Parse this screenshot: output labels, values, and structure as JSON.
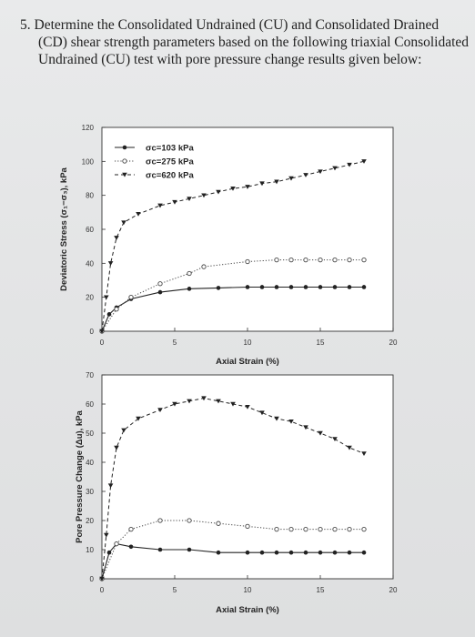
{
  "question": {
    "lines": [
      "5. Determine the Consolidated Undrained (CU) and Consolidated Drained",
      "(CD) shear strength parameters based on the following triaxial Consolidated",
      "Undrained (CU) test with pore pressure change results given below:"
    ]
  },
  "chart_data": [
    {
      "type": "line",
      "xlabel": "Axial Strain (%)",
      "ylabel": "Deviatoric Stress (σ₁−σ₃), kPa",
      "xlim": [
        0,
        20
      ],
      "ylim": [
        0,
        120
      ],
      "x_ticks": [
        0,
        5,
        10,
        15,
        20
      ],
      "y_ticks": [
        0,
        20,
        40,
        60,
        80,
        100,
        120
      ],
      "grid": false,
      "legend_position": "top-left",
      "series": [
        {
          "name": "σc=103 kPa",
          "color": "#222222",
          "marker": "filled-circle",
          "linestyle": "solid",
          "x": [
            0,
            0.5,
            1,
            2,
            4,
            6,
            8,
            10,
            11,
            12,
            13,
            14,
            15,
            16,
            17,
            18
          ],
          "y": [
            0,
            10,
            14,
            19,
            23,
            25,
            25.5,
            26,
            26,
            26,
            26,
            26,
            26,
            26,
            26,
            26
          ]
        },
        {
          "name": "σc=275 kPa",
          "color": "#444444",
          "marker": "open-circle",
          "linestyle": "dotted",
          "x": [
            0,
            1,
            2,
            4,
            6,
            7,
            10,
            12,
            13,
            14,
            15,
            16,
            17,
            18
          ],
          "y": [
            0,
            13,
            20,
            28,
            34,
            38,
            41,
            42,
            42,
            42,
            42,
            42,
            42,
            42
          ]
        },
        {
          "name": "σc=620 kPa",
          "color": "#222222",
          "marker": "filled-triangle-down",
          "linestyle": "dashed",
          "x": [
            0,
            0.3,
            0.6,
            1,
            1.5,
            2.5,
            4,
            5,
            6,
            7,
            8,
            9,
            10,
            11,
            12,
            13,
            14,
            15,
            16,
            17,
            18
          ],
          "y": [
            0,
            20,
            40,
            55,
            64,
            69,
            74,
            76,
            78,
            80,
            82,
            84,
            85,
            87,
            88,
            90,
            92,
            94,
            96,
            98,
            100
          ]
        }
      ]
    },
    {
      "type": "line",
      "xlabel": "Axial Strain (%)",
      "ylabel": "Pore Pressure Change (Δu), kPa",
      "xlim": [
        0,
        20
      ],
      "ylim": [
        0,
        70
      ],
      "x_ticks": [
        0,
        5,
        10,
        15,
        20
      ],
      "y_ticks": [
        0,
        10,
        20,
        30,
        40,
        50,
        60,
        70
      ],
      "grid": false,
      "series": [
        {
          "name": "σc=103 kPa",
          "color": "#222222",
          "marker": "filled-circle",
          "linestyle": "solid",
          "x": [
            0,
            0.5,
            1,
            2,
            4,
            6,
            8,
            10,
            11,
            12,
            13,
            14,
            15,
            16,
            17,
            18
          ],
          "y": [
            0,
            9,
            12,
            11,
            10,
            10,
            9,
            9,
            9,
            9,
            9,
            9,
            9,
            9,
            9,
            9
          ]
        },
        {
          "name": "σc=275 kPa",
          "color": "#444444",
          "marker": "open-circle",
          "linestyle": "dotted",
          "x": [
            0,
            1,
            2,
            4,
            6,
            8,
            10,
            12,
            13,
            14,
            15,
            16,
            17,
            18
          ],
          "y": [
            0,
            12,
            17,
            20,
            20,
            19,
            18,
            17,
            17,
            17,
            17,
            17,
            17,
            17
          ]
        },
        {
          "name": "σc=620 kPa",
          "color": "#222222",
          "marker": "filled-triangle-down",
          "linestyle": "dashed",
          "x": [
            0,
            0.3,
            0.6,
            1,
            1.5,
            2.5,
            4,
            5,
            6,
            7,
            8,
            9,
            10,
            11,
            12,
            13,
            14,
            15,
            16,
            17,
            18
          ],
          "y": [
            0,
            15,
            32,
            45,
            51,
            55,
            58,
            60,
            61,
            62,
            61,
            60,
            59,
            57,
            55,
            54,
            52,
            50,
            48,
            45,
            43
          ]
        }
      ]
    }
  ]
}
